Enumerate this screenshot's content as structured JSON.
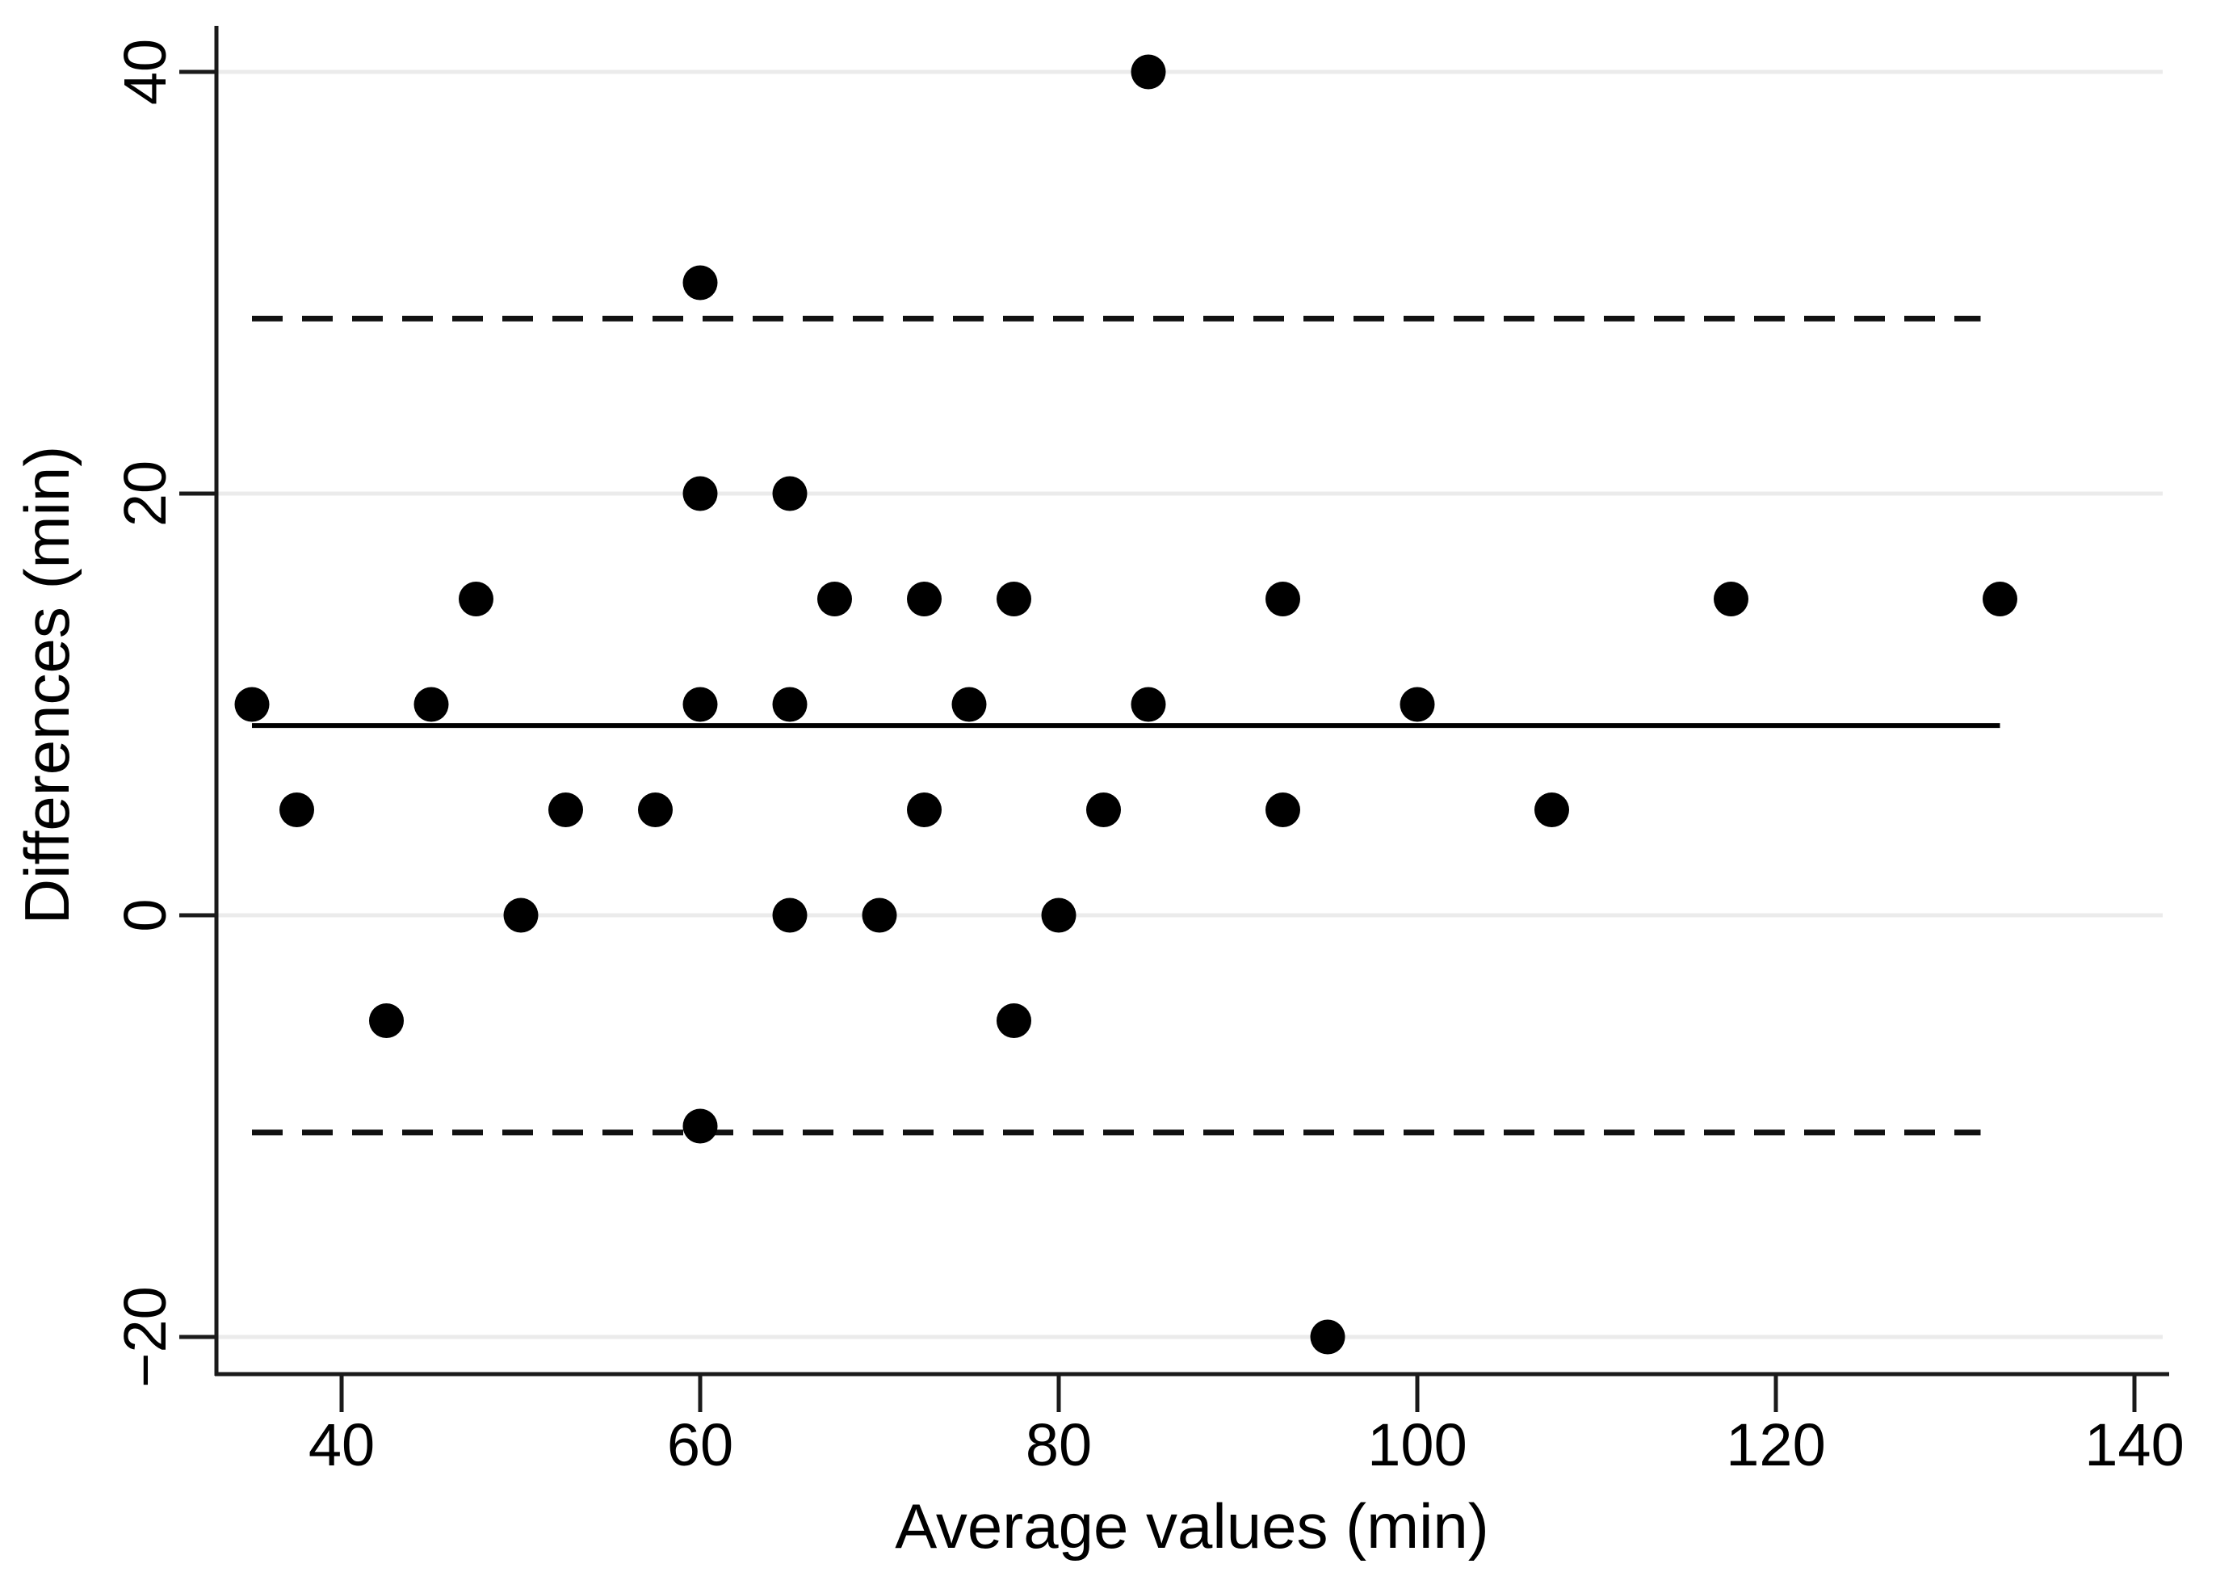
{
  "chart_data": {
    "type": "scatter",
    "subtype": "bland-altman",
    "title": "",
    "xlabel": "Average values (min)",
    "ylabel": "Differences (min)",
    "xlim": [
      33,
      141.5
    ],
    "ylim": [
      -21.7,
      42.3
    ],
    "grid": "horizontal-light",
    "legend": "none",
    "x_ticks": [
      {
        "value": 40,
        "label": "40"
      },
      {
        "value": 60,
        "label": "60"
      },
      {
        "value": 80,
        "label": "80"
      },
      {
        "value": 100,
        "label": "100"
      },
      {
        "value": 120,
        "label": "120"
      },
      {
        "value": 140,
        "label": "140"
      }
    ],
    "y_ticks": [
      {
        "value": 40,
        "label": "40"
      },
      {
        "value": 20,
        "label": "20"
      },
      {
        "value": 0,
        "label": "0"
      },
      {
        "value": -20,
        "label": "−20"
      }
    ],
    "reference_lines": {
      "mean_difference": 9.0,
      "upper_limit_of_agreement": 28.3,
      "lower_limit_of_agreement": -10.3,
      "mean_line_style": "solid",
      "loa_line_style": "dashed"
    },
    "points": [
      {
        "x": 35,
        "y": 10
      },
      {
        "x": 37.5,
        "y": 5
      },
      {
        "x": 42.5,
        "y": -5
      },
      {
        "x": 45,
        "y": 10
      },
      {
        "x": 47.5,
        "y": 15
      },
      {
        "x": 50,
        "y": 0
      },
      {
        "x": 52.5,
        "y": 5
      },
      {
        "x": 57.5,
        "y": 5
      },
      {
        "x": 60,
        "y": 30
      },
      {
        "x": 60,
        "y": 20
      },
      {
        "x": 60,
        "y": 10
      },
      {
        "x": 60,
        "y": -10
      },
      {
        "x": 65,
        "y": 20
      },
      {
        "x": 65,
        "y": 10
      },
      {
        "x": 65,
        "y": 0
      },
      {
        "x": 67.5,
        "y": 15
      },
      {
        "x": 70,
        "y": 0
      },
      {
        "x": 72.5,
        "y": 15
      },
      {
        "x": 72.5,
        "y": 5
      },
      {
        "x": 75,
        "y": 10
      },
      {
        "x": 77.5,
        "y": 15
      },
      {
        "x": 77.5,
        "y": -5
      },
      {
        "x": 80,
        "y": 0
      },
      {
        "x": 82.5,
        "y": 5
      },
      {
        "x": 85,
        "y": 40
      },
      {
        "x": 85,
        "y": 10
      },
      {
        "x": 92.5,
        "y": 15
      },
      {
        "x": 92.5,
        "y": 5
      },
      {
        "x": 95,
        "y": -20
      },
      {
        "x": 100,
        "y": 10
      },
      {
        "x": 107.5,
        "y": 5
      },
      {
        "x": 117.5,
        "y": 15
      },
      {
        "x": 132.5,
        "y": 15
      }
    ],
    "colors": {
      "point": "#000000",
      "mean_line": "#000000",
      "loa_line": "#111111",
      "gridline": "#ebebeb",
      "axis": "#1a1a1a",
      "background": "#ffffff"
    }
  }
}
